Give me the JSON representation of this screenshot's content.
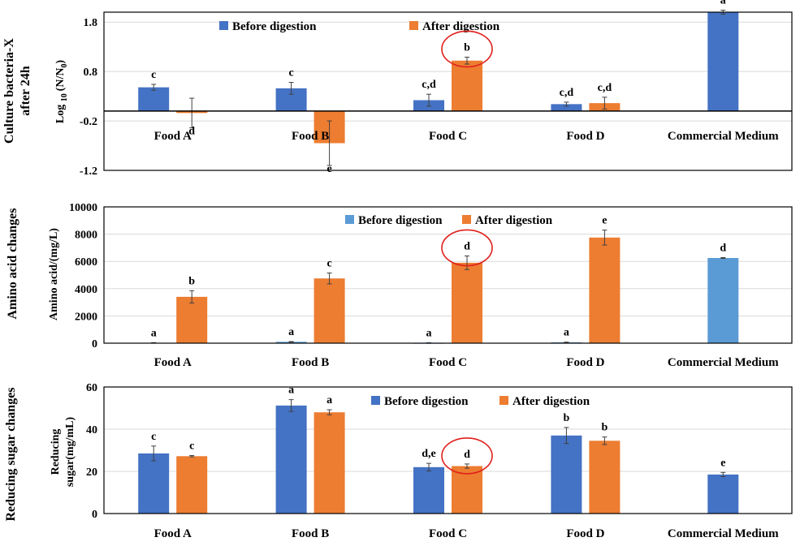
{
  "colors": {
    "before": "#4472C4",
    "after": "#ED7D31",
    "before_panel2": "#5B9BD5",
    "highlight_circle": "#E0201B",
    "gridline": "#D9D9D9",
    "error_bar": "#404040"
  },
  "chart_data": [
    {
      "type": "bar",
      "row_label": [
        "Culture bacteria-X",
        "after 24h"
      ],
      "ylabel": "Log 10 (N/N0)",
      "ylabel_parts": {
        "base": "Log",
        "sub1": "10",
        "mid": "(N/N",
        "sub2": "0",
        "end": ")"
      },
      "categories": [
        "Food A",
        "Food B",
        "Food C",
        "Food D",
        "Commercial Medium"
      ],
      "ylim": [
        -1.2,
        2.0
      ],
      "yticks": [
        1.8,
        0.8,
        -0.2,
        -1.2
      ],
      "ytick_labels": [
        "1.8",
        "0.8",
        "-0.2",
        "-1.2"
      ],
      "grid": true,
      "legend_position": "top",
      "series": [
        {
          "name": "Before digestion",
          "values": [
            0.48,
            0.46,
            0.22,
            0.14,
            2.0
          ],
          "errors": [
            0.06,
            0.12,
            0.12,
            0.04,
            0.04
          ],
          "letters": [
            "c",
            "c",
            "c,d",
            "c,d",
            "a"
          ]
        },
        {
          "name": "After digestion",
          "values": [
            -0.04,
            -0.65,
            1.02,
            0.16,
            null
          ],
          "errors": [
            0.3,
            0.45,
            0.07,
            0.12,
            null
          ],
          "letters": [
            "d",
            "e",
            "b",
            "c,d",
            ""
          ]
        }
      ],
      "highlight": {
        "series": 1,
        "category": 2
      }
    },
    {
      "type": "bar",
      "row_label": [
        "Amino acid changes"
      ],
      "ylabel": "Amino acid/(mg/L)",
      "categories": [
        "Food A",
        "Food B",
        "Food C",
        "Food D",
        "Commercial Medium"
      ],
      "ylim": [
        0,
        10000
      ],
      "yticks": [
        0,
        2000,
        4000,
        6000,
        8000,
        10000
      ],
      "ytick_labels": [
        "0",
        "2000",
        "4000",
        "6000",
        "8000",
        "10000"
      ],
      "grid": true,
      "legend_position": "top",
      "series": [
        {
          "name": "Before digestion",
          "values": [
            30,
            100,
            20,
            60,
            6250
          ],
          "errors": [
            10,
            20,
            10,
            15,
            30
          ],
          "letters": [
            "a",
            "a",
            "a",
            "a",
            "d"
          ]
        },
        {
          "name": "After digestion",
          "values": [
            3400,
            4750,
            5900,
            7750,
            null
          ],
          "errors": [
            450,
            400,
            500,
            550,
            null
          ],
          "letters": [
            "b",
            "c",
            "d",
            "e",
            ""
          ]
        }
      ],
      "highlight": {
        "series": 1,
        "category": 2
      }
    },
    {
      "type": "bar",
      "row_label": [
        "Reducing sugar changes"
      ],
      "ylabel": "Reducing sugar(mg/mL)",
      "ylabel_lines": [
        "Reducing",
        "sugar(mg/mL)"
      ],
      "categories": [
        "Food A",
        "Food B",
        "Food C",
        "Food D",
        "Commercial Medium"
      ],
      "ylim": [
        0,
        60
      ],
      "yticks": [
        0,
        20,
        40,
        60
      ],
      "ytick_labels": [
        "0",
        "20",
        "40",
        "60"
      ],
      "grid": true,
      "legend_position": "top-right",
      "series": [
        {
          "name": "Before digestion",
          "values": [
            28.5,
            51.2,
            22.0,
            37.0,
            18.5
          ],
          "errors": [
            3.5,
            2.8,
            1.8,
            3.8,
            1.0
          ],
          "letters": [
            "c",
            "a",
            "d,e",
            "b",
            "e"
          ]
        },
        {
          "name": "After digestion",
          "values": [
            27.2,
            48.0,
            22.5,
            34.5,
            null
          ],
          "errors": [
            0.3,
            1.2,
            1.0,
            1.8,
            null
          ],
          "letters": [
            "c",
            "a",
            "d",
            "b",
            ""
          ]
        }
      ],
      "highlight": {
        "series": 1,
        "category": 2
      }
    }
  ]
}
